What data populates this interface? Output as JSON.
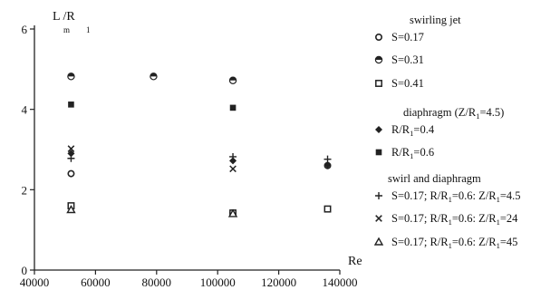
{
  "chart_data": {
    "type": "scatter",
    "xlabel": "Re",
    "ylabel": "L /R",
    "ylabel_sub1": "m",
    "ylabel_sub2": "1",
    "xlim": [
      40000,
      140000
    ],
    "ylim": [
      0,
      6
    ],
    "xticks": [
      40000,
      60000,
      80000,
      100000,
      120000,
      140000
    ],
    "yticks": [
      0,
      2,
      4,
      6
    ],
    "xtick_labels": [
      "40000",
      "60000",
      "80000",
      "100000",
      "120000",
      "140000"
    ],
    "ytick_labels": [
      "0",
      "2",
      "4",
      "6"
    ],
    "groups": [
      {
        "title": "swirling jet",
        "title_parts": [
          {
            "t": "swirling jet"
          }
        ],
        "series": [
          {
            "name": "S=0.17",
            "marker": "circle-open",
            "label_parts": [
              {
                "t": "S=0.17"
              }
            ],
            "points": [
              [
                52000,
                2.4
              ],
              [
                105000,
                1.42
              ],
              [
                136000,
                2.6
              ]
            ]
          },
          {
            "name": "S=0.31",
            "marker": "circle-half",
            "label_parts": [
              {
                "t": "S=0.31"
              }
            ],
            "points": [
              [
                52000,
                4.82
              ],
              [
                79000,
                4.82
              ],
              [
                105000,
                4.72
              ]
            ]
          },
          {
            "name": "S=0.41",
            "marker": "square-open",
            "label_parts": [
              {
                "t": "S=0.41"
              }
            ],
            "points": [
              [
                52000,
                1.6
              ],
              [
                105000,
                1.42
              ],
              [
                136000,
                1.52
              ]
            ]
          }
        ]
      },
      {
        "title": "diaphragm (Z/R1=4.5)",
        "title_parts": [
          {
            "t": "diaphragm (Z/R"
          },
          {
            "t": "1",
            "sub": true
          },
          {
            "t": "=4.5)"
          }
        ],
        "series": [
          {
            "name": "R/R1=0.4",
            "marker": "diamond-filled",
            "label_parts": [
              {
                "t": "R/R"
              },
              {
                "t": "1",
                "sub": true
              },
              {
                "t": "=0.4"
              }
            ],
            "points": [
              [
                52000,
                2.9
              ],
              [
                105000,
                2.72
              ],
              [
                136000,
                2.62
              ]
            ]
          },
          {
            "name": "R/R1=0.6",
            "marker": "square-filled",
            "label_parts": [
              {
                "t": "R/R"
              },
              {
                "t": "1",
                "sub": true
              },
              {
                "t": "=0.6"
              }
            ],
            "points": [
              [
                52000,
                4.12
              ],
              [
                105000,
                4.04
              ]
            ]
          }
        ]
      },
      {
        "title": "swirl and diaphragm",
        "title_parts": [
          {
            "t": "swirl and diaphragm"
          }
        ],
        "series": [
          {
            "name": "S=0.17; R/R1=0.6: Z/R1=4.5",
            "marker": "plus",
            "label_parts": [
              {
                "t": "S=0.17; R/R"
              },
              {
                "t": "1",
                "sub": true
              },
              {
                "t": "=0.6: Z/R"
              },
              {
                "t": "1",
                "sub": true
              },
              {
                "t": "=4.5"
              }
            ],
            "points": [
              [
                52000,
                2.78
              ],
              [
                105000,
                2.82
              ],
              [
                136000,
                2.76
              ]
            ]
          },
          {
            "name": "S=0.17; R/R1=0.6: Z/R1=24",
            "marker": "cross",
            "label_parts": [
              {
                "t": "S=0.17; R/R"
              },
              {
                "t": "1",
                "sub": true
              },
              {
                "t": "=0.6: Z/R"
              },
              {
                "t": "1",
                "sub": true
              },
              {
                "t": "=24"
              }
            ],
            "points": [
              [
                52000,
                3.02
              ],
              [
                105000,
                2.52
              ]
            ]
          },
          {
            "name": "S=0.17; R/R1=0.6: Z/R1=45",
            "marker": "triangle-open",
            "label_parts": [
              {
                "t": "S=0.17; R/R"
              },
              {
                "t": "1",
                "sub": true
              },
              {
                "t": "=0.6: Z/R"
              },
              {
                "t": "1",
                "sub": true
              },
              {
                "t": "=45"
              }
            ],
            "points": [
              [
                52000,
                1.5
              ],
              [
                105000,
                1.4
              ]
            ]
          }
        ]
      }
    ],
    "grid": false,
    "legend": "right"
  }
}
